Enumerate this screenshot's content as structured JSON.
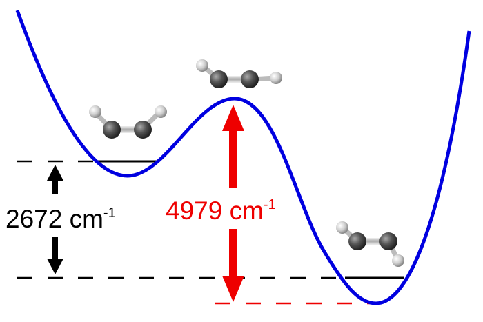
{
  "diagram": {
    "left_energy_label": {
      "value": "2672 cm",
      "superscript": "-1"
    },
    "right_energy_label": {
      "value": "4979 cm",
      "superscript": "-1"
    },
    "colors": {
      "curve": "#0000e0",
      "barrier_arrow": "#ee0000",
      "isomerization_arrow": "#000000",
      "carbon_atom": "#555555",
      "hydrogen_atom": "#dddddd"
    },
    "molecules": [
      "cis-bent",
      "linear transition state",
      "trans-bent"
    ]
  }
}
